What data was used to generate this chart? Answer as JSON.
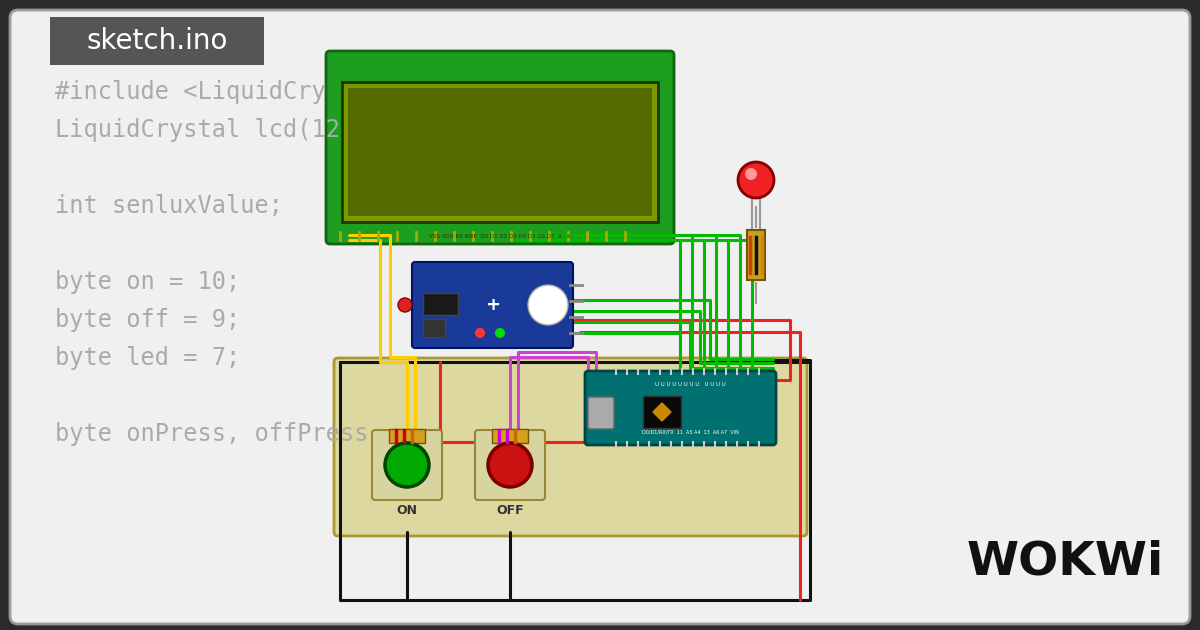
{
  "bg_color": "#2a2a2a",
  "inner_bg": "#f0f0f0",
  "sketch_badge_color": "#555555",
  "sketch_badge_text": "sketch.ino",
  "code_lines": [
    "#include <LiquidCry",
    "LiquidCrystal lcd(12",
    "",
    "int senluxValue;",
    "",
    "byte on = 10;",
    "byte off = 9;",
    "byte led = 7;",
    "",
    "byte onPress, offPress"
  ],
  "code_color": "#aaaaaa",
  "code_fontsize": 17,
  "wokwi_color": "#111111",
  "lcd_outer_color": "#1e9e1e",
  "lcd_screen_color": "#7a9a00",
  "lcd_inner_color": "#556b00",
  "arduino_color": "#007070",
  "sensor_color": "#1a3a9a",
  "btn_green_color": "#00aa00",
  "btn_red_color": "#cc1111",
  "led_color": "#ee2222",
  "border_color": "#888888"
}
